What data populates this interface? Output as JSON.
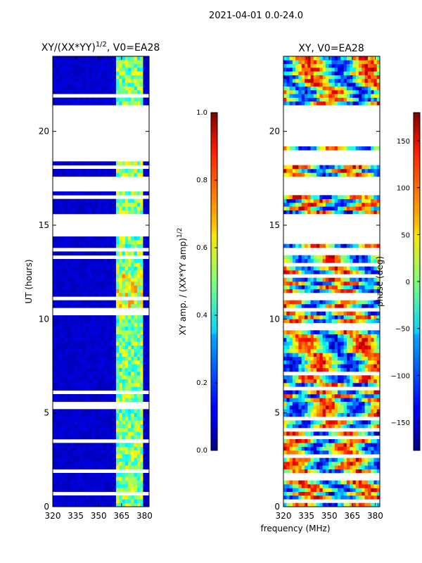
{
  "figure_title": "2021-04-01 0.0-24.0",
  "chart_data": [
    {
      "type": "heatmap",
      "title": "XY/(XX*YY)^1/2, V0=EA28",
      "title_main": "XY/(XX*YY)",
      "title_exp": "1/2",
      "title_tail": ", V0=EA28",
      "xlabel": "",
      "ylabel": "UT (hours)",
      "xlim": [
        320,
        383
      ],
      "ylim": [
        0,
        24
      ],
      "xticks": [
        320,
        335,
        350,
        365,
        380
      ],
      "yticks": [
        0,
        5,
        10,
        15,
        20
      ],
      "colorbar": {
        "label": "XY amp. / (XX*YY amp)^1/2",
        "label_main": "XY amp. / (XX*YY amp)",
        "label_exp": "1/2",
        "range": [
          0.0,
          1.0
        ],
        "ticks": [
          0.0,
          0.2,
          0.4,
          0.6,
          0.8,
          1.0
        ],
        "tick_labels": [
          "0.0",
          "0.2",
          "0.4",
          "0.6",
          "0.8",
          "1.0"
        ],
        "colormap": "jet"
      },
      "blank_time_ranges_hours": [
        [
          21.3,
          19.3
        ],
        [
          19.0,
          18.3
        ],
        [
          17.5,
          16.9
        ],
        [
          15.5,
          14.5
        ]
      ]
    },
    {
      "type": "heatmap",
      "title": "XY, V0=EA28",
      "xlabel": "frequency (MHz)",
      "ylabel": "",
      "xlim": [
        320,
        383
      ],
      "ylim": [
        0,
        24
      ],
      "xticks": [
        320,
        335,
        350,
        365,
        380
      ],
      "yticks": [
        0,
        5,
        10,
        15,
        20
      ],
      "colorbar": {
        "label": "phase (deg)",
        "range": [
          -180,
          180
        ],
        "ticks": [
          -150,
          -100,
          -50,
          0,
          50,
          100,
          150
        ],
        "tick_labels": [
          "−150",
          "−100",
          "−50",
          "0",
          "50",
          "100",
          "150"
        ],
        "colormap": "jet"
      },
      "blank_time_ranges_hours": [
        [
          21.3,
          19.3
        ],
        [
          19.0,
          18.3
        ],
        [
          17.5,
          16.9
        ],
        [
          15.5,
          14.5
        ]
      ]
    }
  ]
}
